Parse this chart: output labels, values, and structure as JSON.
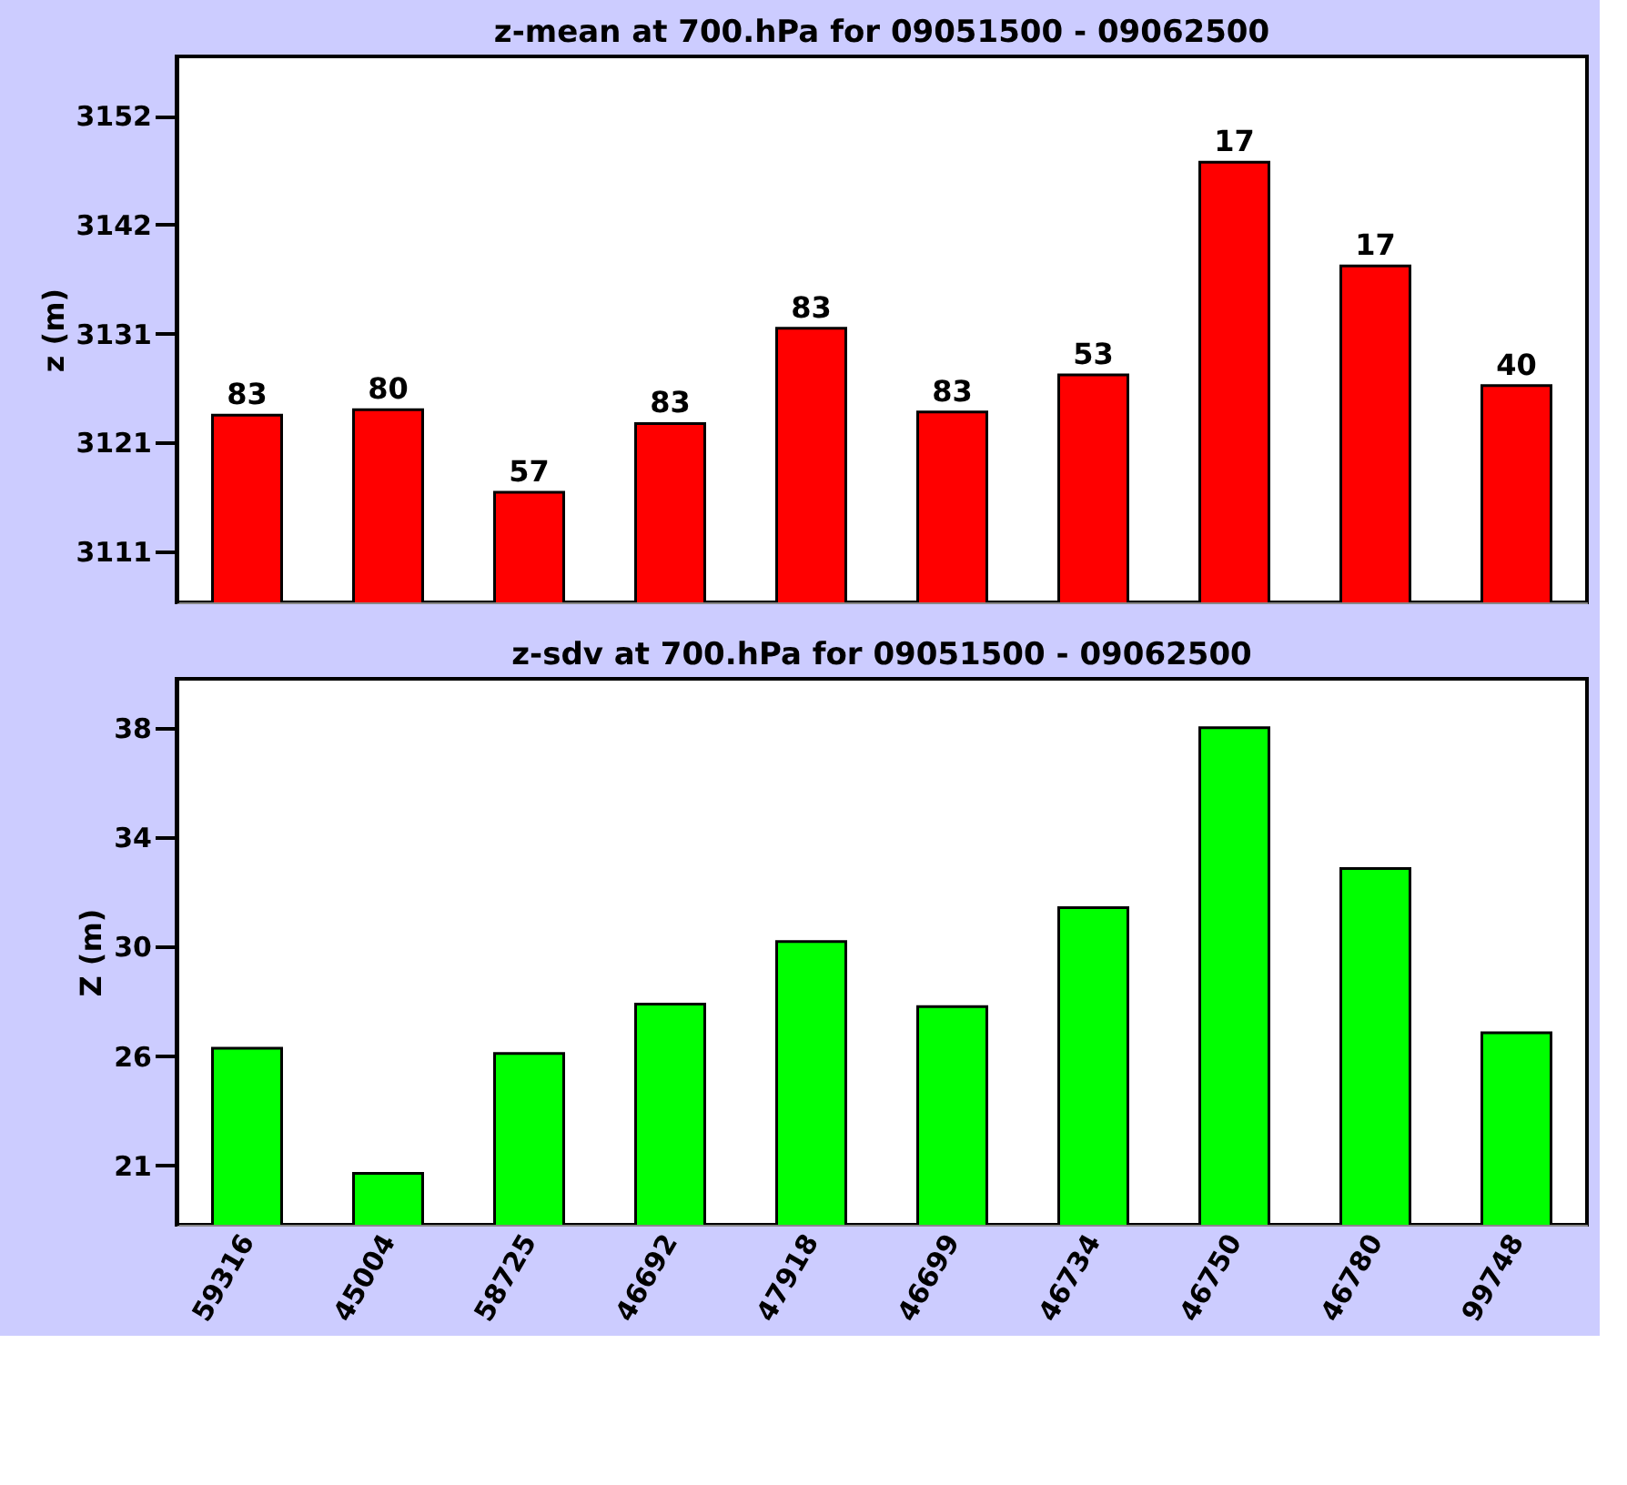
{
  "chart_data": [
    {
      "type": "bar",
      "title": "z-mean at  700.hPa for 09051500 - 09062500",
      "ylabel": "z (m)",
      "categories": [
        "59316",
        "45004",
        "58725",
        "46692",
        "47918",
        "46699",
        "46734",
        "46750",
        "46780",
        "99748"
      ],
      "values": [
        3123.7,
        3124.2,
        3116.4,
        3122.9,
        3131.9,
        3124.0,
        3127.5,
        3147.6,
        3137.8,
        3126.5
      ],
      "annotations": [
        {
          "text": "83",
          "x": "59316",
          "y": 3123.7
        },
        {
          "text": "80",
          "x": "45004",
          "y": 3124.2
        },
        {
          "text": "57",
          "x": "58725",
          "y": 3116.4
        },
        {
          "text": "83",
          "x": "46692",
          "y": 3122.9
        },
        {
          "text": "83",
          "x": "47918",
          "y": 3131.9
        },
        {
          "text": "83",
          "x": "46699",
          "y": 3124.0
        },
        {
          "text": "53",
          "x": "46734",
          "y": 3127.5
        },
        {
          "text": "17",
          "x": "46750",
          "y": 3147.6
        },
        {
          "text": "17",
          "x": "46780",
          "y": 3137.8
        },
        {
          "text": "40",
          "x": "99748",
          "y": 3126.5
        }
      ],
      "color": "#ff0000",
      "ylim": [
        3106.0,
        3157.6
      ],
      "yticks": [
        {
          "value": 3110.8,
          "label": "3111"
        },
        {
          "value": 3121.1,
          "label": "3121"
        },
        {
          "value": 3131.4,
          "label": "3131"
        },
        {
          "value": 3141.7,
          "label": "3142"
        },
        {
          "value": 3152.0,
          "label": "3152"
        }
      ],
      "tick_labels": "y",
      "grid": false
    },
    {
      "type": "bar",
      "title": "z-sdv at  700.hPa for 09051500 - 09062500",
      "ylabel": "Z (m)",
      "categories": [
        "59316",
        "45004",
        "58725",
        "46692",
        "47918",
        "46699",
        "46734",
        "46750",
        "46780",
        "99748"
      ],
      "values": [
        25.9,
        21.1,
        25.7,
        27.6,
        30.0,
        27.5,
        31.3,
        38.2,
        32.8,
        26.5
      ],
      "color": "#00ff00",
      "ylim": [
        19.13,
        40.08
      ],
      "yticks": [
        {
          "value": 21.4,
          "label": "21"
        },
        {
          "value": 25.6,
          "label": "26"
        },
        {
          "value": 29.8,
          "label": "30"
        },
        {
          "value": 34.0,
          "label": "34"
        },
        {
          "value": 38.2,
          "label": "38"
        }
      ],
      "grid": false
    }
  ]
}
